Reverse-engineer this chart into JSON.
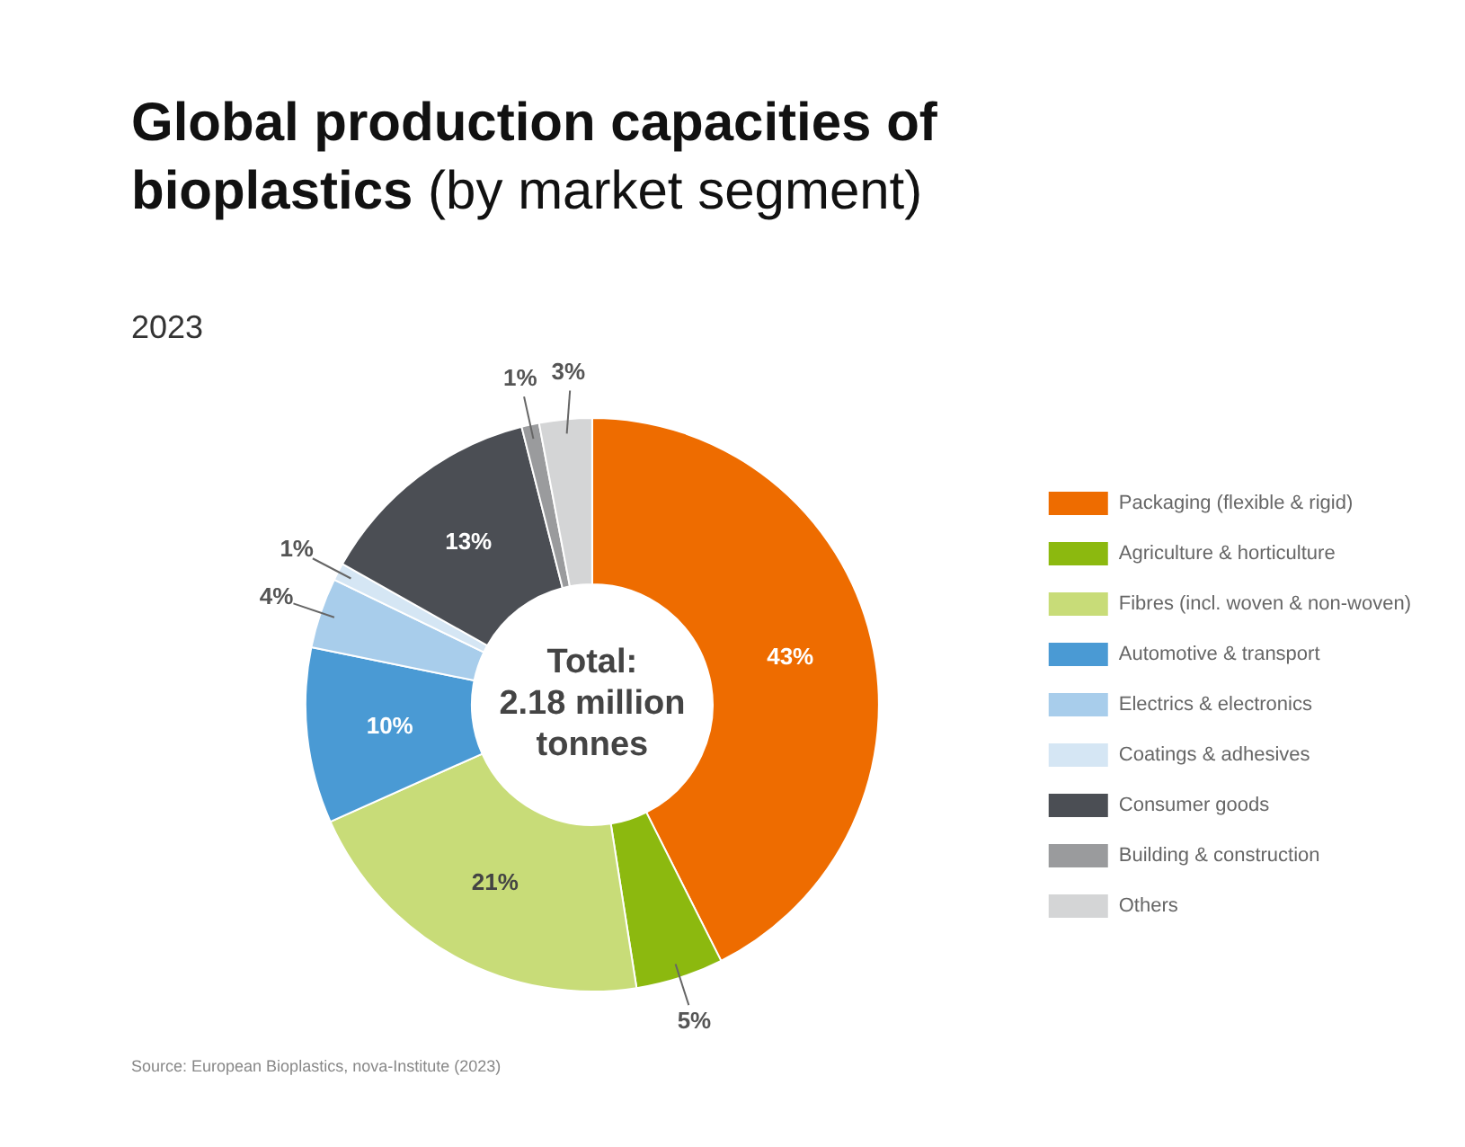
{
  "chart_data": {
    "type": "donut",
    "title": "Global production capacities of bioplastics (by market segment)",
    "subtitle": "2023",
    "categories": [
      "Packaging (flexible & rigid)",
      "Agriculture & horticulture",
      "Fibres (incl. woven & non-woven)",
      "Automotive & transport",
      "Electrics & electronics",
      "Coatings & adhesives",
      "Consumer goods",
      "Building & construction",
      "Others"
    ],
    "values": [
      43,
      5,
      21,
      10,
      4,
      1,
      13,
      1,
      3
    ],
    "colors": [
      "#ee6c00",
      "#8cb90f",
      "#c8dc78",
      "#4a9ad4",
      "#a8cdeb",
      "#d5e6f4",
      "#4b4e54",
      "#9a9b9d",
      "#d4d5d6"
    ],
    "value_labels": [
      "43%",
      "5%",
      "21%",
      "10%",
      "4%",
      "1%",
      "13%",
      "1%",
      "3%"
    ],
    "legend": "right",
    "annotations": [
      "Total: 2.18 million tonnes",
      "Source: European Bioplastics, nova-Institute (2023)"
    ]
  }
}
